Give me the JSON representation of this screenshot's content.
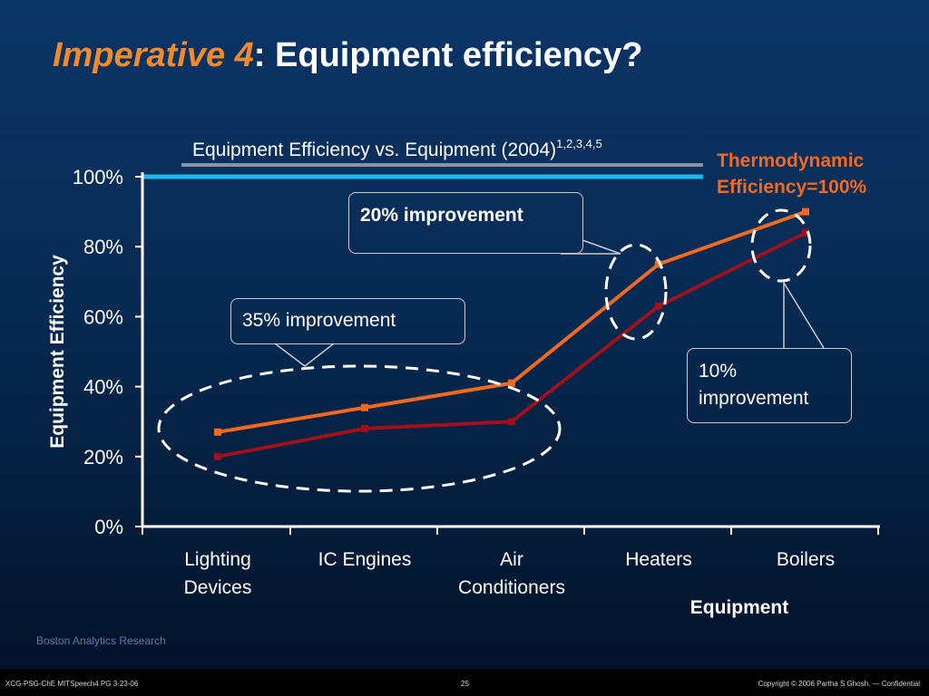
{
  "slide": {
    "title_italic": "Imperative 4",
    "title_rest": ": Equipment efficiency?",
    "chart_title": "Equipment Efficiency vs. Equipment  (2004)",
    "chart_title_sup": "1,2,3,4,5",
    "thermo_label_line1": "Thermodynamic",
    "thermo_label_line2": "Efficiency=100%",
    "callout_20": "20% improvement",
    "callout_35": "35% improvement",
    "callout_10_line1": "10%",
    "callout_10_line2": "improvement",
    "footer_source": "Boston Analytics Research",
    "footer_left": "XCG-PSG-ChE MITSpeech4 PG 3-23-06",
    "footer_page": "25",
    "footer_right": "Copyright © 2006 Partha S Ghosh. — Confidential"
  },
  "colors": {
    "title_accent": "#f08a2c",
    "series_upper": "#f26a21",
    "series_lower": "#a0121b",
    "thermo_line": "#1fb6ee",
    "thermo_label": "#f26a21"
  },
  "chart_data": {
    "type": "line",
    "categories": [
      "Lighting Devices",
      "IC Engines",
      "Air Conditioners",
      "Heaters",
      "Boilers"
    ],
    "category_lines": [
      [
        "Lighting",
        "Devices"
      ],
      [
        "IC Engines"
      ],
      [
        "Air",
        "Conditioners"
      ],
      [
        "Heaters"
      ],
      [
        "Boilers"
      ]
    ],
    "series": [
      {
        "values": [
          27,
          34,
          41,
          75,
          90
        ]
      },
      {
        "values": [
          20,
          28,
          30,
          63,
          84
        ]
      }
    ],
    "reference_line": {
      "value": 100
    },
    "xlabel": "Equipment",
    "ylabel": "Equipment Efficiency",
    "ylim": [
      0,
      100
    ],
    "yticks": [
      0,
      20,
      40,
      60,
      80,
      100
    ],
    "ytick_labels": [
      "0%",
      "20%",
      "40%",
      "60%",
      "80%",
      "100%"
    ],
    "grid": false
  }
}
